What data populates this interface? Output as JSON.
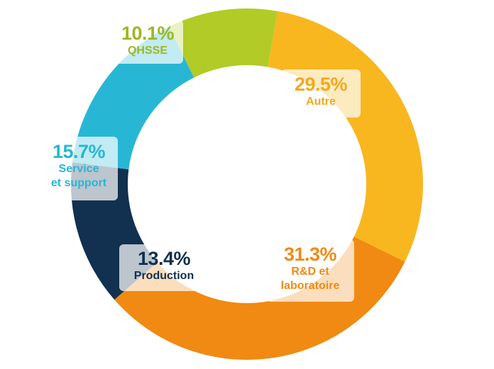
{
  "chart_data": {
    "type": "donut",
    "title": "",
    "slices": [
      {
        "name": "Autre",
        "percent_label": "29.5%",
        "value": 29.5,
        "color": "#F8B71F",
        "label_lines": [
          "Autre"
        ]
      },
      {
        "name": "R&D et laboratoire",
        "percent_label": "31.3%",
        "value": 31.3,
        "color": "#F08A12",
        "label_lines": [
          "R&D et",
          "laboratoire"
        ]
      },
      {
        "name": "Production",
        "percent_label": "13.4%",
        "value": 13.4,
        "color": "#12304F",
        "label_lines": [
          "Production"
        ]
      },
      {
        "name": "Service et support",
        "percent_label": "15.7%",
        "value": 15.7,
        "color": "#27B7D4",
        "label_lines": [
          "Service",
          "et support"
        ]
      },
      {
        "name": "QHSSE",
        "percent_label": "10.1%",
        "value": 10.1,
        "color": "#B2CB26",
        "label_lines": [
          "QHSSE"
        ]
      }
    ]
  }
}
